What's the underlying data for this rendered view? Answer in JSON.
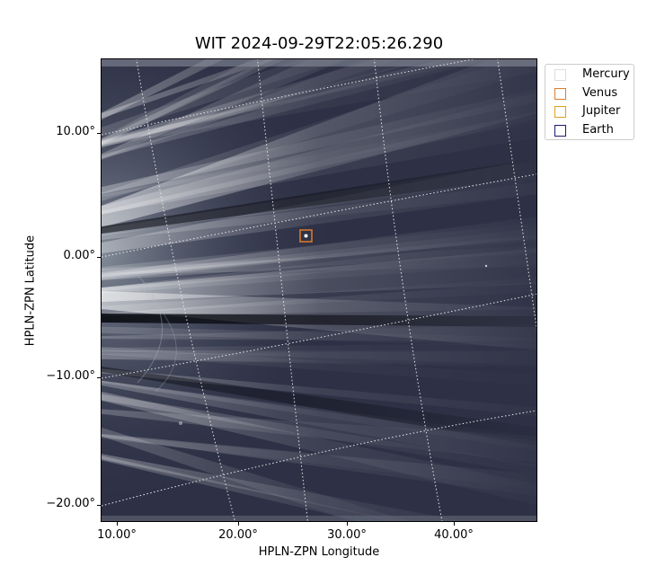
{
  "title": "WIT 2024-09-29T22:05:26.290",
  "axes": {
    "xlabel": "HPLN-ZPN Longitude",
    "ylabel": "HPLN-ZPN Latitude",
    "xticks": [
      "10.00°",
      "20.00°",
      "30.00°",
      "40.00°"
    ],
    "yticks": [
      "10.00°",
      "0.00°",
      "−10.00°",
      "−20.00°"
    ]
  },
  "legend": [
    {
      "label": "Mercury",
      "color": "#dddddd"
    },
    {
      "label": "Venus",
      "color": "#e07b2a"
    },
    {
      "label": "Jupiter",
      "color": "#e0a11a"
    },
    {
      "label": "Earth",
      "color": "#1a1a6e"
    }
  ],
  "image": {
    "background_color": "#2e3145",
    "streamer_color": "#b8c8d0",
    "grid_color": "#e8e8e8",
    "marker_color": "#e07b2a"
  }
}
